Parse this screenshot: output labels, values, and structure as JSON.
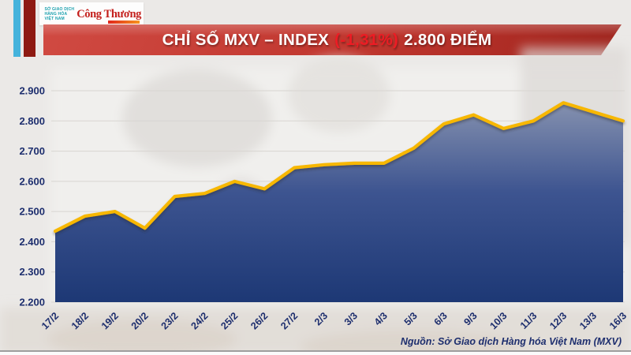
{
  "logo": {
    "org_lines": [
      "SỞ GIAO DỊCH",
      "HÀNG HÓA",
      "VIỆT NAM"
    ],
    "newspaper": "Công Thương"
  },
  "banner": {
    "title_prefix": "CHỈ SỐ MXV – INDEX",
    "change": "(-1,31%)",
    "title_suffix": "2.800 ĐIỂM"
  },
  "source_note": "Nguồn: Sở Giao dịch Hàng hóa Việt Nam (MXV)",
  "colors": {
    "banner_red_top": "#d04a42",
    "banner_red_bottom": "#9f251e",
    "change_red": "#ed1c24",
    "line_gold": "#f7b701",
    "area_top": "#8591af",
    "area_bottom": "#1d3875",
    "label_navy": "#1d2e6e",
    "stripe_cyan": "#45b3dc",
    "stripe_darkred": "#8e1a12",
    "logo_teal": "#1aa0ae"
  },
  "chart_data": {
    "type": "area",
    "title": "CHỈ SỐ MXV – INDEX (-1,31%) 2.800 ĐIỂM",
    "categories": [
      "17/2",
      "18/2",
      "19/2",
      "20/2",
      "23/2",
      "24/2",
      "25/2",
      "26/2",
      "27/2",
      "2/3",
      "3/3",
      "4/3",
      "5/3",
      "6/3",
      "9/3",
      "10/3",
      "11/3",
      "12/3",
      "13/3",
      "16/3"
    ],
    "values": [
      2435,
      2485,
      2500,
      2445,
      2550,
      2560,
      2600,
      2575,
      2645,
      2655,
      2660,
      2660,
      2710,
      2790,
      2820,
      2775,
      2800,
      2860,
      2830,
      2800
    ],
    "xlabel": "",
    "ylabel": "",
    "ylim": [
      2200,
      2900
    ],
    "yticks": [
      2200,
      2300,
      2400,
      2500,
      2600,
      2700,
      2800,
      2900
    ],
    "ytick_labels": [
      "2.200",
      "2.300",
      "2.400",
      "2.500",
      "2.600",
      "2.700",
      "2.800",
      "2.900"
    ],
    "grid": "horizontal",
    "legend": "none"
  }
}
